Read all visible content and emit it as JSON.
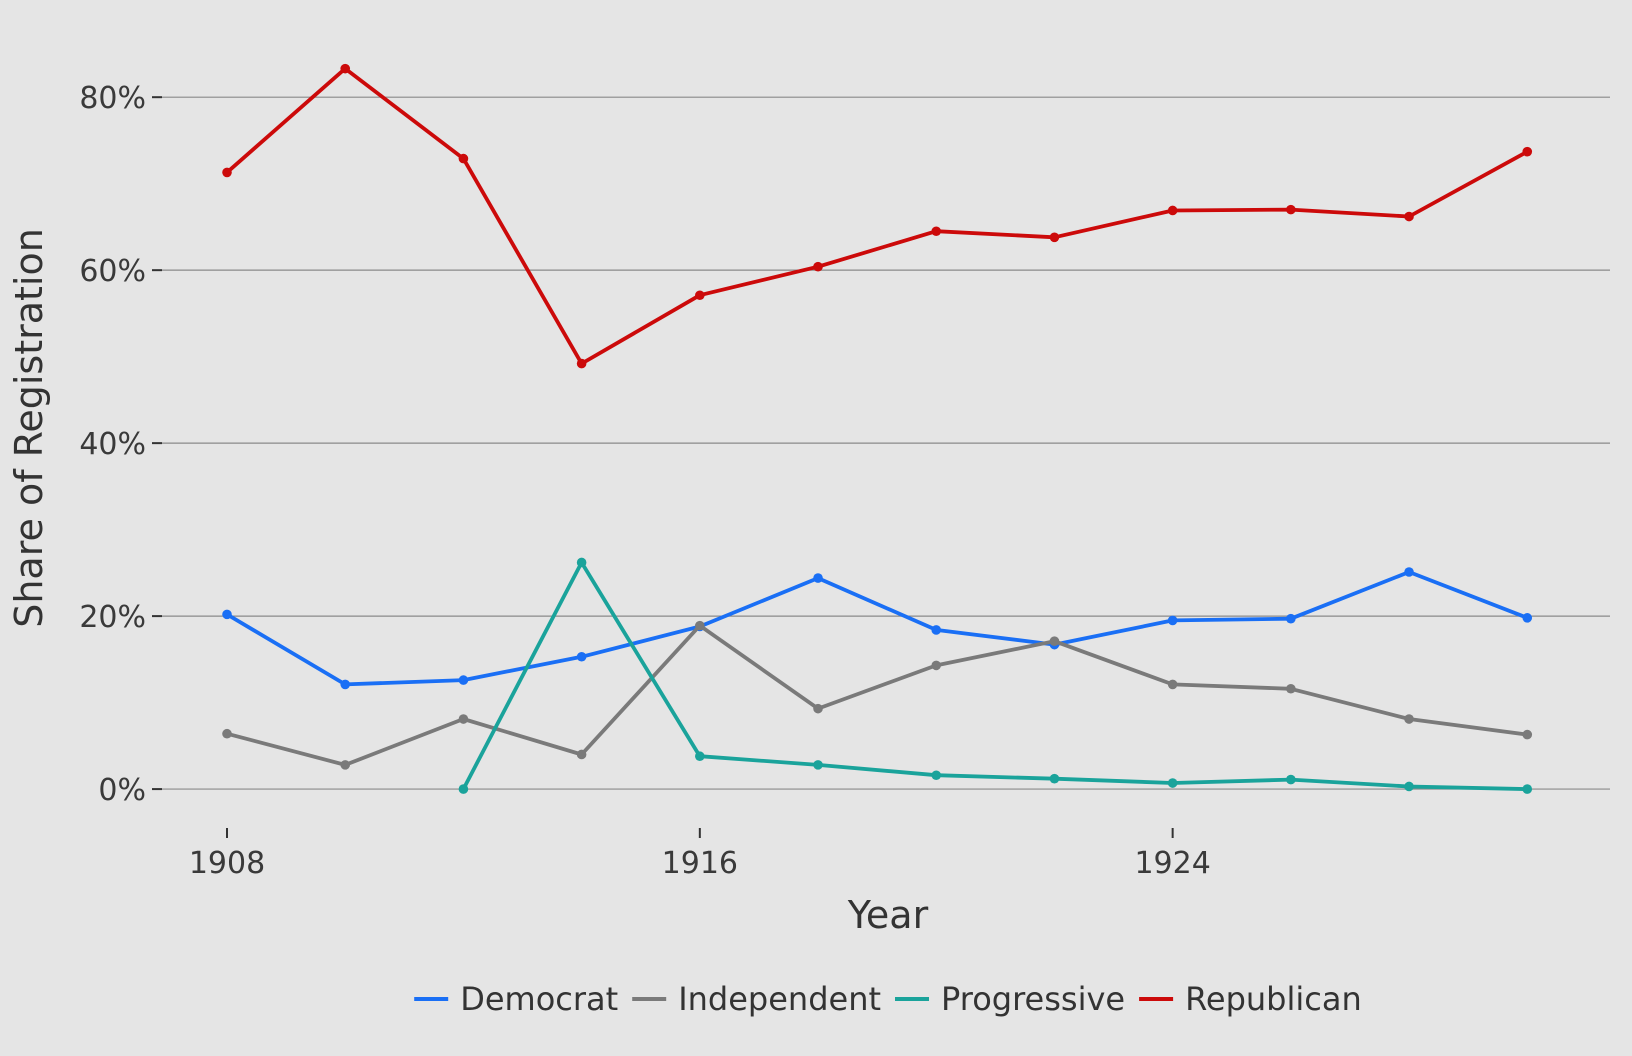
{
  "chart_data": {
    "type": "line",
    "title": "",
    "xlabel": "Year",
    "ylabel": "Share of Registration",
    "x": [
      1908,
      1910,
      1912,
      1914,
      1916,
      1918,
      1920,
      1922,
      1924,
      1926,
      1928,
      1930
    ],
    "xlim": [
      1906.9,
      1931.4
    ],
    "ylim": [
      -0.045,
      0.88
    ],
    "x_ticks": [
      1908,
      1916,
      1924
    ],
    "x_tick_labels": [
      "1908",
      "1916",
      "1924"
    ],
    "y_ticks": [
      0,
      0.2,
      0.4,
      0.6,
      0.8
    ],
    "y_tick_labels": [
      "0%",
      "20%",
      "40%",
      "60%",
      "80%"
    ],
    "grid": "horizontal",
    "legend_position": "bottom",
    "series": [
      {
        "name": "Democrat",
        "color": "#1a6ff5",
        "values": [
          0.202,
          0.121,
          0.126,
          0.153,
          0.188,
          0.244,
          0.184,
          0.167,
          0.195,
          0.197,
          0.251,
          0.198
        ]
      },
      {
        "name": "Independent",
        "color": "#7a7a7a",
        "values": [
          0.064,
          0.028,
          0.081,
          0.04,
          0.189,
          0.093,
          0.143,
          0.171,
          0.121,
          0.116,
          0.081,
          0.063
        ]
      },
      {
        "name": "Progressive",
        "color": "#1aa39b",
        "values": [
          null,
          null,
          0.0,
          0.262,
          0.038,
          0.028,
          0.016,
          0.012,
          0.007,
          0.011,
          0.003,
          0.0
        ]
      },
      {
        "name": "Republican",
        "color": "#cc0a0a",
        "values": [
          0.713,
          0.833,
          0.729,
          0.492,
          0.571,
          0.604,
          0.645,
          0.638,
          0.669,
          0.67,
          0.662,
          0.737
        ]
      }
    ]
  }
}
